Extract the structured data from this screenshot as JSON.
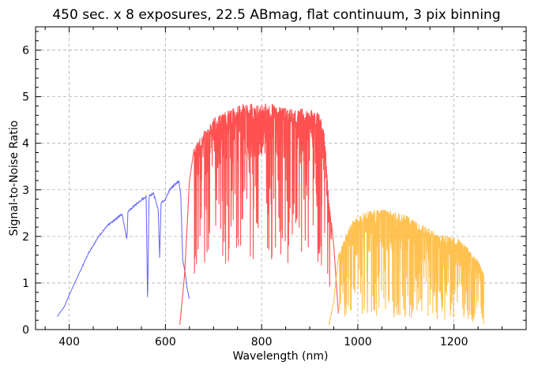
{
  "chart_data": {
    "type": "line",
    "title": "450 sec. x 8 exposures, 22.5 ABmag, flat continuum, 3 pix binning",
    "xlabel": "Wavelength (nm)",
    "ylabel": "Signal-to-Noise Ratio",
    "xlim": [
      330,
      1350
    ],
    "ylim": [
      0,
      6.5
    ],
    "xticks": [
      400,
      600,
      800,
      1000,
      1200
    ],
    "yticks": [
      0,
      1,
      2,
      3,
      4,
      5,
      6
    ],
    "grid": true,
    "series": [
      {
        "color": "#5555ff",
        "range": [
          375,
          650
        ],
        "points": [
          [
            375,
            0.28
          ],
          [
            390,
            0.5
          ],
          [
            400,
            0.75
          ],
          [
            420,
            1.2
          ],
          [
            440,
            1.65
          ],
          [
            460,
            2.0
          ],
          [
            480,
            2.25
          ],
          [
            500,
            2.42
          ],
          [
            510,
            2.5
          ],
          [
            520,
            1.95
          ],
          [
            522,
            2.55
          ],
          [
            540,
            2.72
          ],
          [
            560,
            2.88
          ],
          [
            563,
            0.55
          ],
          [
            566,
            2.9
          ],
          [
            575,
            2.95
          ],
          [
            585,
            2.6
          ],
          [
            588,
            1.55
          ],
          [
            591,
            2.75
          ],
          [
            600,
            2.82
          ],
          [
            610,
            3.05
          ],
          [
            620,
            3.15
          ],
          [
            628,
            3.2
          ],
          [
            632,
            2.9
          ],
          [
            636,
            1.5
          ],
          [
            640,
            1.3
          ],
          [
            645,
            0.9
          ],
          [
            650,
            0.65
          ]
        ]
      },
      {
        "color": "#ff3333",
        "range": [
          630,
          960
        ],
        "points": [
          [
            630,
            0.1
          ],
          [
            640,
            1.2
          ],
          [
            650,
            3.2
          ],
          [
            660,
            3.9
          ],
          [
            680,
            4.25
          ],
          [
            700,
            4.55
          ],
          [
            720,
            4.65
          ],
          [
            740,
            4.75
          ],
          [
            760,
            4.85
          ],
          [
            780,
            4.85
          ],
          [
            800,
            4.85
          ],
          [
            820,
            4.85
          ],
          [
            840,
            4.8
          ],
          [
            860,
            4.75
          ],
          [
            880,
            4.75
          ],
          [
            900,
            4.75
          ],
          [
            920,
            4.65
          ],
          [
            930,
            4.3
          ],
          [
            940,
            2.8
          ],
          [
            950,
            1.8
          ],
          [
            960,
            0.3
          ]
        ]
      },
      {
        "color": "#ffb733",
        "range": [
          940,
          1262
        ],
        "points": [
          [
            940,
            0.1
          ],
          [
            950,
            0.6
          ],
          [
            960,
            1.6
          ],
          [
            975,
            2.05
          ],
          [
            990,
            2.35
          ],
          [
            1010,
            2.5
          ],
          [
            1030,
            2.58
          ],
          [
            1050,
            2.6
          ],
          [
            1070,
            2.55
          ],
          [
            1090,
            2.5
          ],
          [
            1110,
            2.4
          ],
          [
            1130,
            2.28
          ],
          [
            1150,
            2.15
          ],
          [
            1170,
            2.05
          ],
          [
            1190,
            2.0
          ],
          [
            1210,
            1.95
          ],
          [
            1230,
            1.75
          ],
          [
            1250,
            1.5
          ],
          [
            1262,
            1.2
          ]
        ]
      }
    ]
  }
}
